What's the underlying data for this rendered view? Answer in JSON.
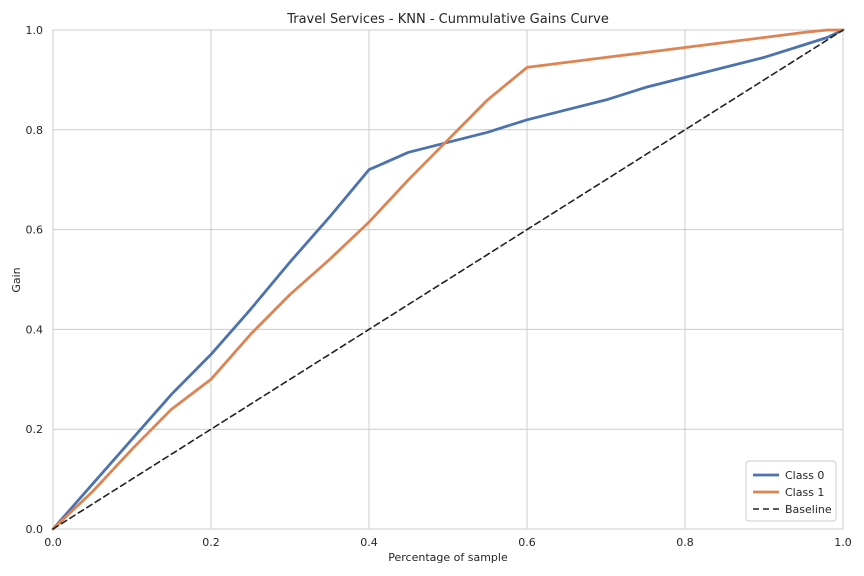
{
  "chart_data": {
    "type": "line",
    "title": "Travel Services - KNN - Cummulative Gains Curve",
    "xlabel": "Percentage of sample",
    "ylabel": "Gain",
    "xlim": [
      0,
      1
    ],
    "ylim": [
      0,
      1
    ],
    "xticks": [
      "0.0",
      "0.2",
      "0.4",
      "0.6",
      "0.8",
      "1.0"
    ],
    "yticks": [
      "0.0",
      "0.2",
      "0.4",
      "0.6",
      "0.8",
      "1.0"
    ],
    "grid": true,
    "legend_position": "lower-right",
    "series": [
      {
        "name": "Class 0",
        "color": "#4c72b0",
        "style": "solid",
        "x": [
          0,
          0.05,
          0.1,
          0.15,
          0.2,
          0.25,
          0.3,
          0.35,
          0.4,
          0.45,
          0.5,
          0.55,
          0.6,
          0.65,
          0.7,
          0.75,
          0.8,
          0.85,
          0.9,
          0.95,
          0.98,
          1.0
        ],
        "y": [
          0,
          0.09,
          0.18,
          0.27,
          0.35,
          0.44,
          0.535,
          0.625,
          0.72,
          0.755,
          0.775,
          0.795,
          0.82,
          0.84,
          0.86,
          0.885,
          0.905,
          0.925,
          0.945,
          0.97,
          0.985,
          1.0
        ]
      },
      {
        "name": "Class 1",
        "color": "#dd8452",
        "style": "solid",
        "x": [
          0,
          0.05,
          0.1,
          0.15,
          0.2,
          0.25,
          0.3,
          0.35,
          0.4,
          0.45,
          0.5,
          0.55,
          0.6,
          0.65,
          0.7,
          0.75,
          0.8,
          0.85,
          0.9,
          0.95,
          0.98,
          1.0
        ],
        "y": [
          0,
          0.075,
          0.16,
          0.24,
          0.3,
          0.39,
          0.47,
          0.54,
          0.615,
          0.7,
          0.78,
          0.86,
          0.925,
          0.935,
          0.945,
          0.955,
          0.965,
          0.975,
          0.985,
          0.995,
          1.0,
          1.0
        ]
      },
      {
        "name": "Baseline",
        "color": "#222222",
        "style": "dashed",
        "x": [
          0,
          1
        ],
        "y": [
          0,
          1
        ]
      }
    ]
  }
}
